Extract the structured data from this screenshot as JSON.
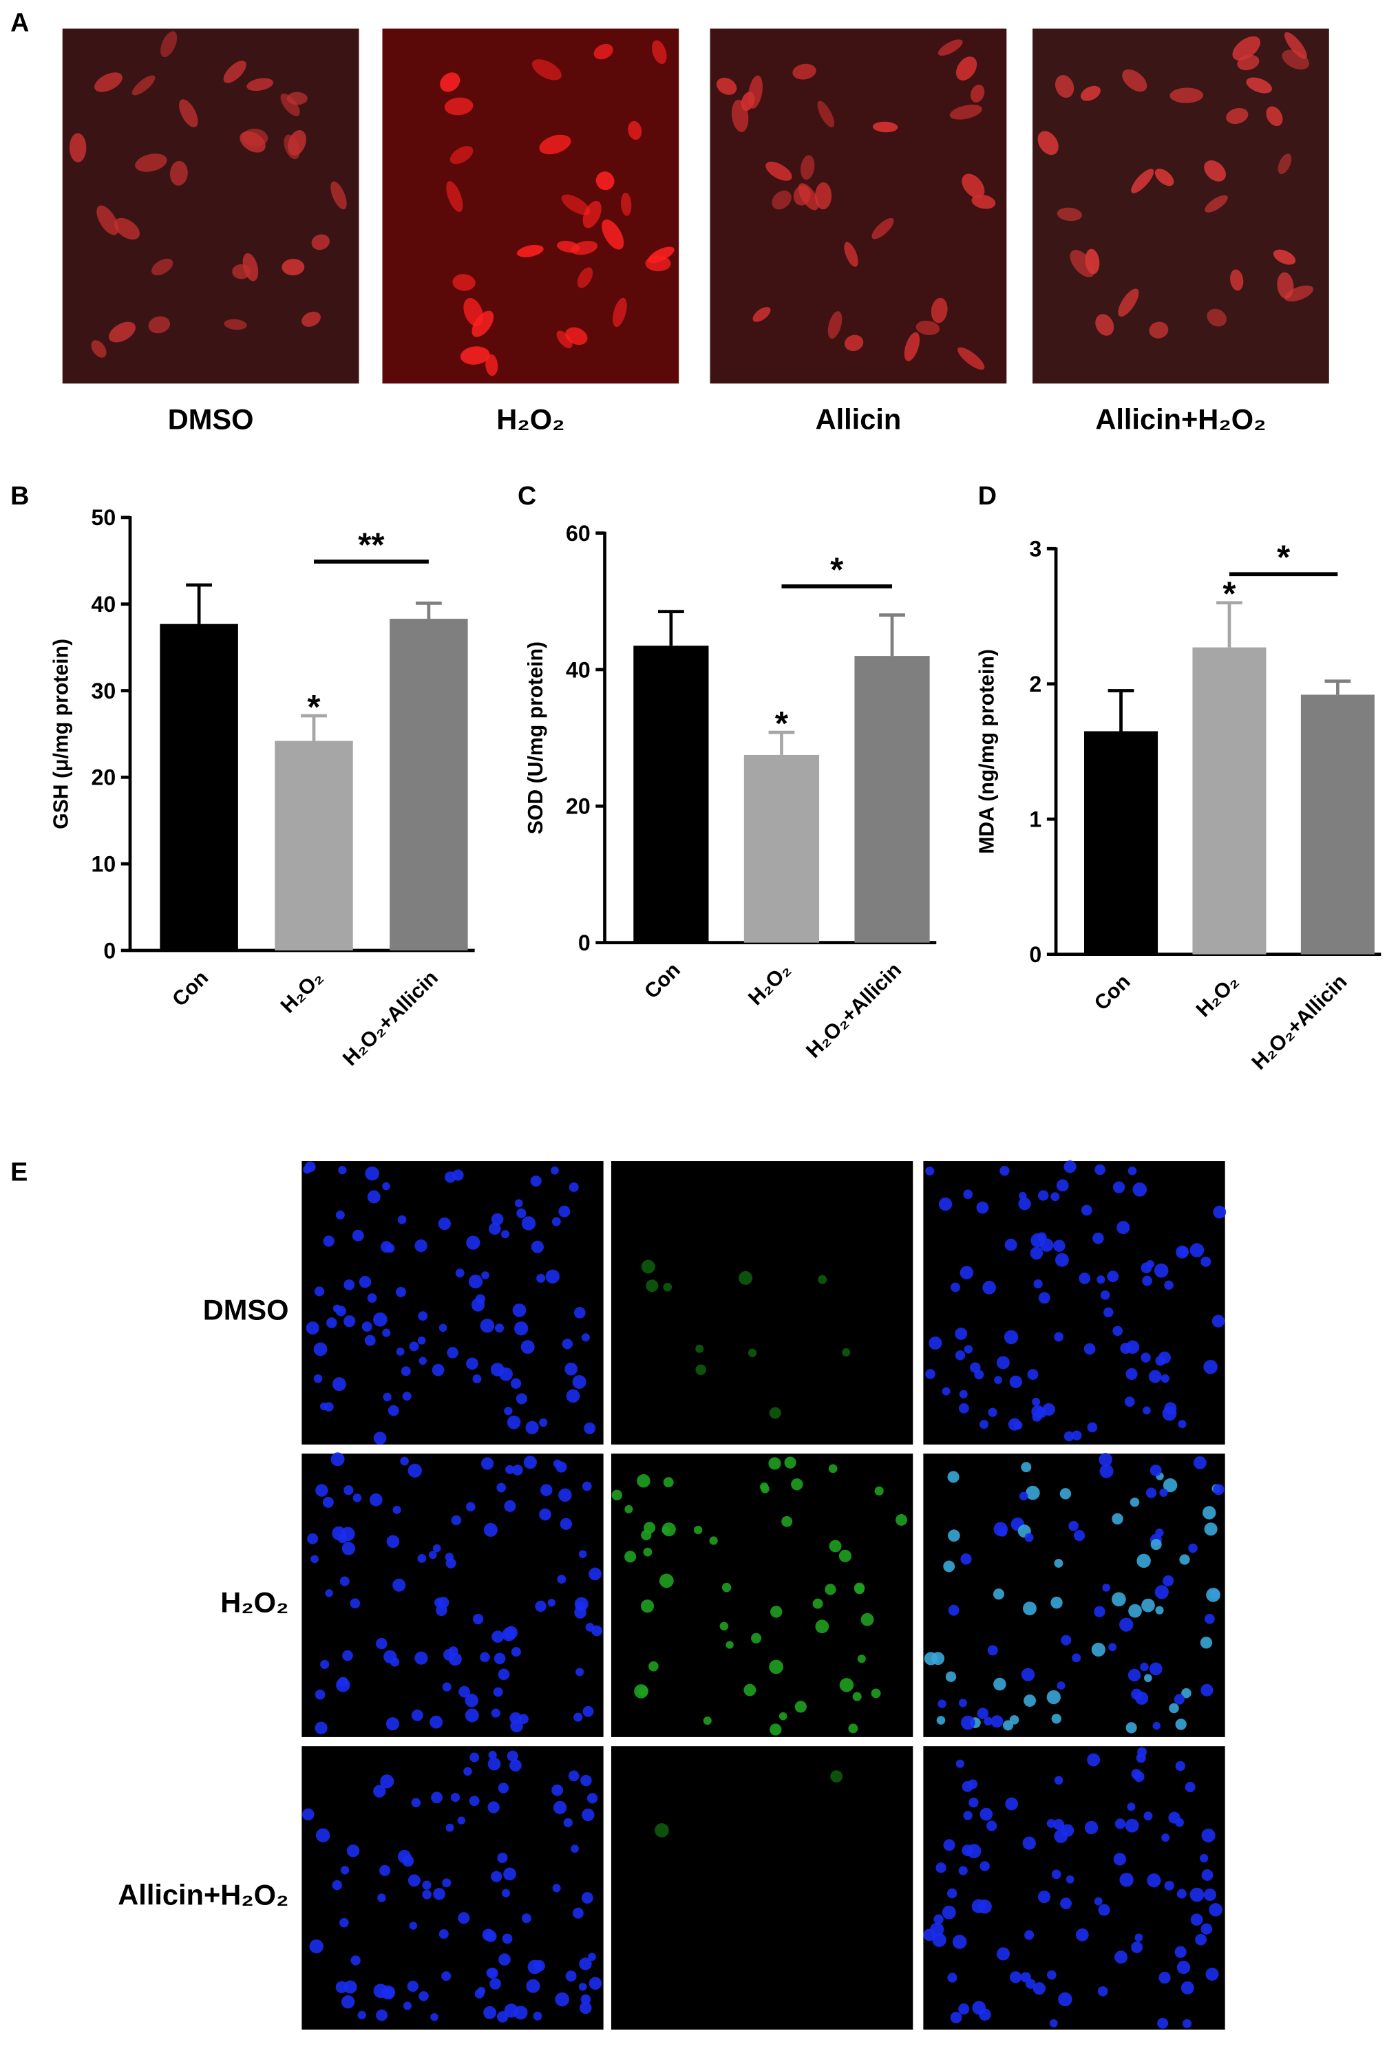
{
  "figure": {
    "panel_labels": [
      "A",
      "B",
      "C",
      "D",
      "E"
    ],
    "a_labels": [
      "DMSO",
      "H₂O₂",
      "Allicin",
      "Allicin+H₂O₂"
    ],
    "e_row_labels": [
      "DMSO",
      "H₂O₂",
      "Allicin+H₂O₂"
    ]
  },
  "chart_data": [
    {
      "type": "bar",
      "ylabel": "GSH (μ/mg protein)",
      "categories": [
        "Con",
        "H₂O₂",
        "H₂O₂+Allicin"
      ],
      "values": [
        37.7,
        24.2,
        38.3
      ],
      "errors": [
        4.5,
        2.9,
        1.8
      ],
      "colors": [
        "#000000",
        "#a6a6a6",
        "#7f7f7f"
      ],
      "ylim": [
        0,
        50
      ],
      "yticks": [
        0,
        10,
        20,
        30,
        40,
        50
      ],
      "stars": [
        null,
        "*",
        null
      ],
      "bracket_label": "**"
    },
    {
      "type": "bar",
      "ylabel": "SOD (U/mg protein)",
      "categories": [
        "Con",
        "H₂O₂",
        "H₂O₂+Allicin"
      ],
      "values": [
        43.5,
        27.5,
        42
      ],
      "errors": [
        5,
        3.3,
        6
      ],
      "colors": [
        "#000000",
        "#a6a6a6",
        "#7f7f7f"
      ],
      "ylim": [
        0,
        60
      ],
      "yticks": [
        0,
        20,
        40,
        60
      ],
      "stars": [
        null,
        "*",
        null
      ],
      "bracket_label": "*"
    },
    {
      "type": "bar",
      "ylabel": "MDA (ng/mg protein)",
      "categories": [
        "Con",
        "H₂O₂",
        "H₂O₂+Allicin"
      ],
      "values": [
        1.65,
        2.27,
        1.92
      ],
      "errors": [
        0.3,
        0.33,
        0.1
      ],
      "colors": [
        "#000000",
        "#a6a6a6",
        "#7f7f7f"
      ],
      "ylim": [
        0,
        3
      ],
      "yticks": [
        0,
        1,
        2,
        3
      ],
      "stars": [
        null,
        "*",
        null
      ],
      "bracket_label": "*"
    }
  ]
}
